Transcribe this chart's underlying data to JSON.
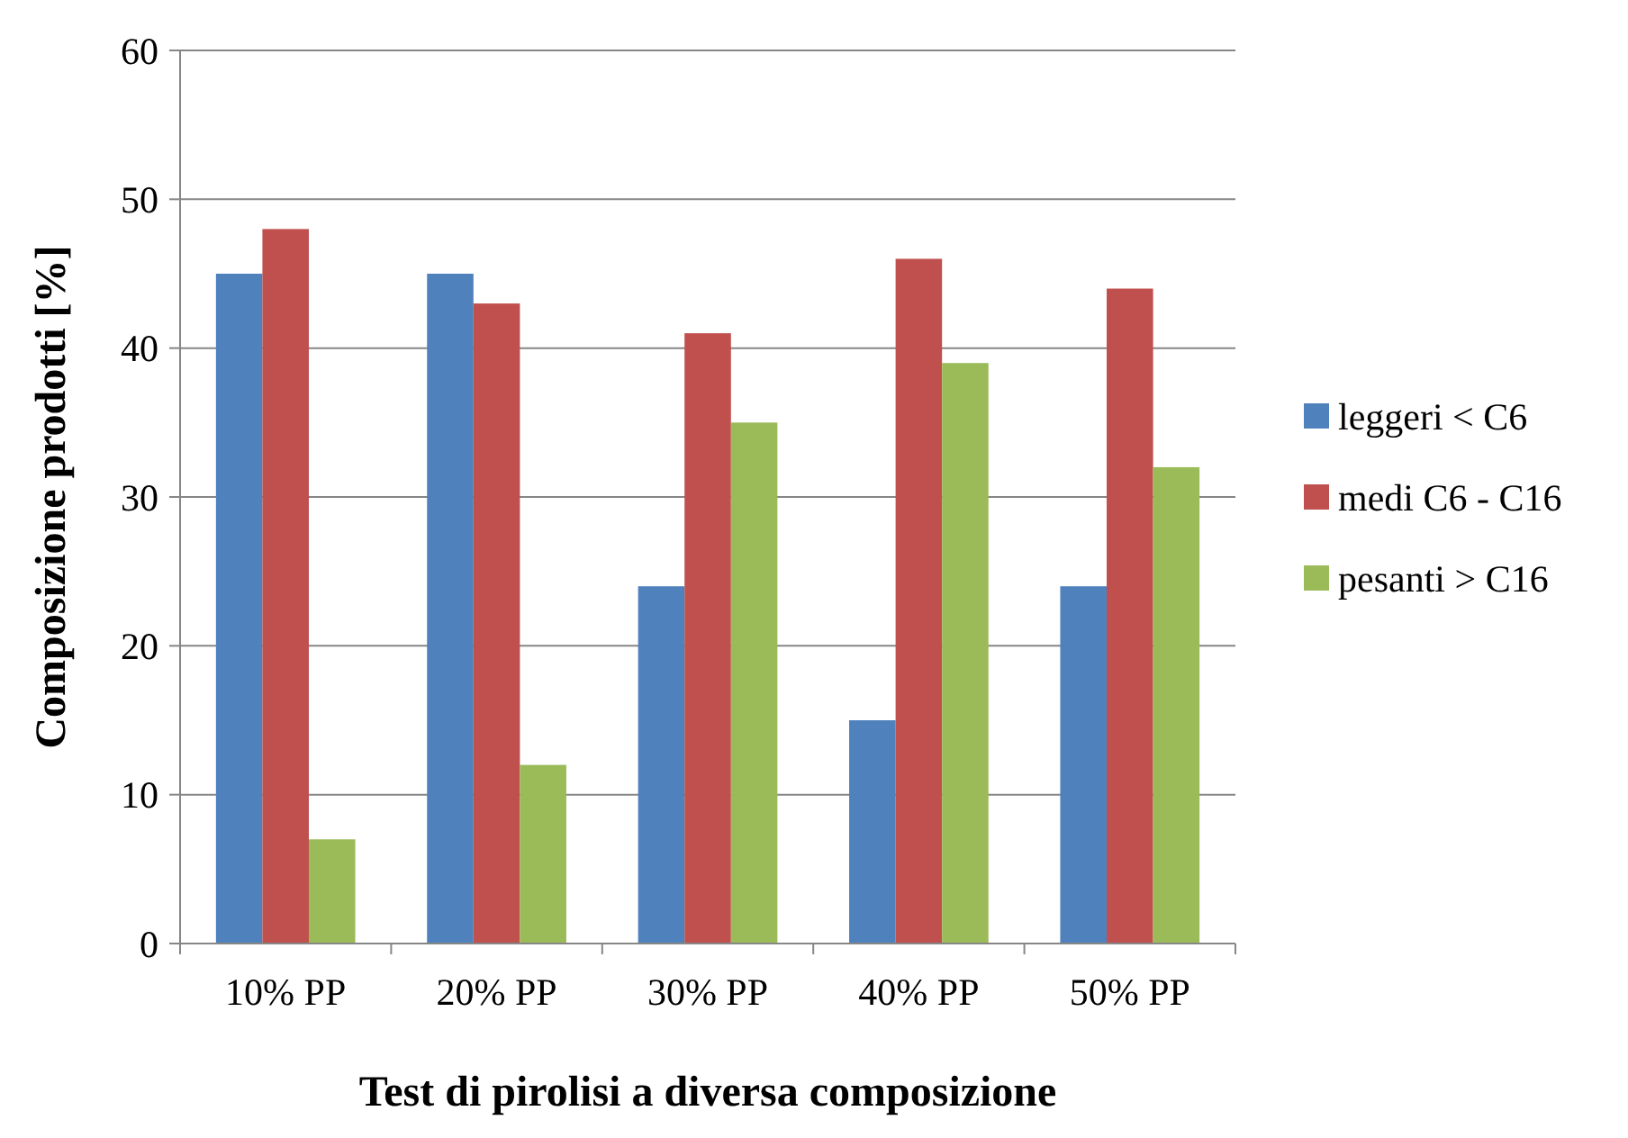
{
  "chart_data": {
    "type": "bar",
    "xlabel": "Test di pirolisi a diversa composizione",
    "ylabel": "Composizione prodotti [%]",
    "categories": [
      "10% PP",
      "20% PP",
      "30% PP",
      "40% PP",
      "50% PP"
    ],
    "series": [
      {
        "name": "leggeri < C6",
        "color": "#4f81bd",
        "values": [
          45,
          45,
          24,
          15,
          24
        ]
      },
      {
        "name": "medi C6 - C16",
        "color": "#c0504d",
        "values": [
          48,
          43,
          41,
          46,
          44
        ]
      },
      {
        "name": "pesanti > C16",
        "color": "#9bbb59",
        "values": [
          7,
          12,
          35,
          39,
          32
        ]
      }
    ],
    "ylim": [
      0,
      60
    ],
    "yticks": [
      0,
      10,
      20,
      30,
      40,
      50,
      60
    ],
    "grid": "y",
    "legend": "right"
  }
}
